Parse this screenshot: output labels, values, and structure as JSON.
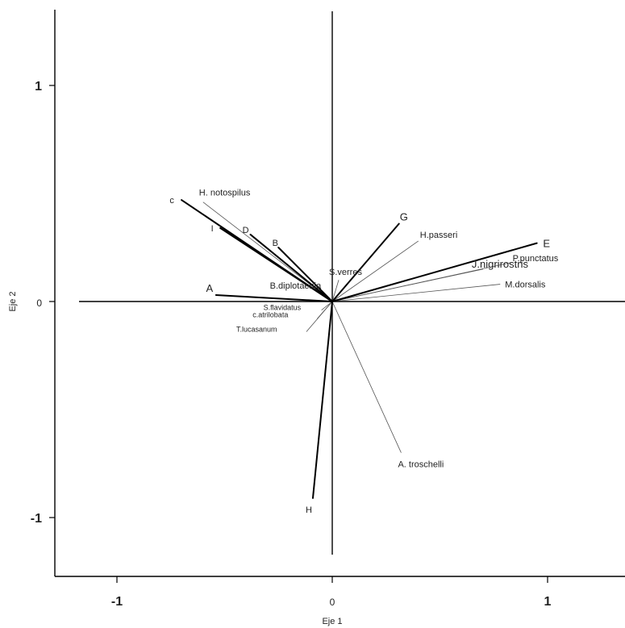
{
  "chart_data": {
    "type": "biplot",
    "xlabel": "Eje 1",
    "ylabel": "Eje 2",
    "xlim": [
      -1.2,
      1.35
    ],
    "ylim": [
      -1.27,
      1.35
    ],
    "ticks": {
      "x": [
        {
          "value": -1,
          "label": "-1"
        },
        {
          "value": 0,
          "label": "0"
        },
        {
          "value": 1,
          "label": "1"
        }
      ],
      "y": [
        {
          "value": 1,
          "label": "1"
        },
        {
          "value": 0,
          "label": "0"
        },
        {
          "value": -1,
          "label": "-1"
        }
      ]
    },
    "major_vectors": [
      {
        "label": "c",
        "x": -0.7,
        "y": 0.47
      },
      {
        "label": "I",
        "x": -0.52,
        "y": 0.34
      },
      {
        "label": "D",
        "x": -0.38,
        "y": 0.31
      },
      {
        "label": "B",
        "x": -0.25,
        "y": 0.25
      },
      {
        "label": "A",
        "x": -0.54,
        "y": 0.03
      },
      {
        "label": "G",
        "x": 0.31,
        "y": 0.36
      },
      {
        "label": "E",
        "x": 0.95,
        "y": 0.27
      },
      {
        "label": "H",
        "x": -0.09,
        "y": -0.91
      }
    ],
    "minor_vectors": [
      {
        "label": "H. notospilus",
        "x": -0.6,
        "y": 0.46
      },
      {
        "label": "H.passeri",
        "x": 0.4,
        "y": 0.28
      },
      {
        "label": "P.punctatus",
        "x": 0.83,
        "y": 0.18
      },
      {
        "label": "J.nigrirostris",
        "x": 0.7,
        "y": 0.15
      },
      {
        "label": "M.dorsalis",
        "x": 0.78,
        "y": 0.08
      },
      {
        "label": "S.verres",
        "x": 0.03,
        "y": 0.1
      },
      {
        "label": "B.diplotaenia",
        "x": -0.08,
        "y": 0.06
      },
      {
        "label": "S.flavidatus",
        "x": -0.05,
        "y": -0.04
      },
      {
        "label": "c.atrilobata",
        "x": -0.07,
        "y": -0.08
      },
      {
        "label": "T.lucasanum",
        "x": -0.12,
        "y": -0.14
      },
      {
        "label": "A. troschelli",
        "x": 0.32,
        "y": -0.7
      }
    ]
  }
}
